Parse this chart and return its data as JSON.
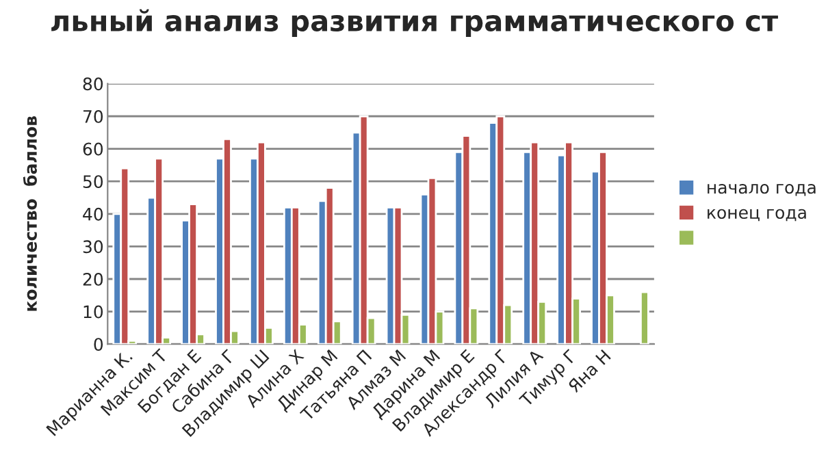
{
  "chart_data": {
    "type": "bar",
    "title": "льный анализ развития грамматического ст",
    "ylabel": "количество  баллов",
    "categories": [
      "Марианна К.",
      "Максим Т",
      "Богдан Е",
      "Сабина Г",
      "Владимир Ш",
      "Алина Х",
      "Динар М",
      "Татьяна П",
      "Алмаз М",
      "Дарина М",
      "Владимир Е",
      "Александр Г",
      "Лилия А",
      "Тимур Г",
      "Яна Н",
      null
    ],
    "series": [
      {
        "name": "начало года",
        "color": "#4f81bd",
        "values": [
          40,
          45,
          38,
          57,
          57,
          42,
          44,
          65,
          42,
          46,
          59,
          68,
          59,
          58,
          53,
          null
        ]
      },
      {
        "name": "конец года",
        "color": "#c0504d",
        "values": [
          54,
          57,
          43,
          63,
          62,
          42,
          48,
          70,
          42,
          51,
          64,
          70,
          62,
          62,
          59,
          null
        ]
      },
      {
        "color": "#9bbb59",
        "values": [
          1,
          2,
          3,
          4,
          5,
          6,
          7,
          8,
          9,
          10,
          11,
          12,
          13,
          14,
          15,
          16
        ]
      }
    ],
    "ylim": [
      0,
      80
    ],
    "yticks": [
      0,
      10,
      20,
      30,
      40,
      50,
      60,
      70,
      80
    ],
    "grid": "y",
    "legend": "right"
  }
}
